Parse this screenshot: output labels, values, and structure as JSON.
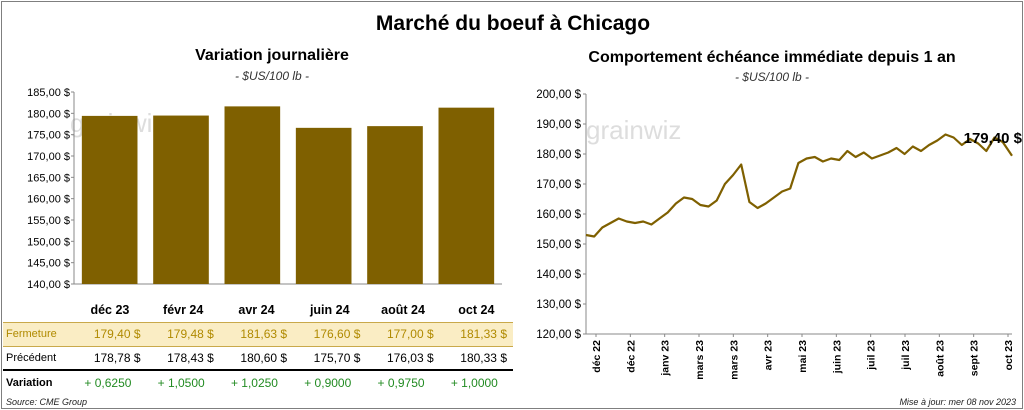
{
  "title": "Marché du boeuf à Chicago",
  "source": "Source: CME Group",
  "update": "Mise à jour: mer 08 nov 2023",
  "watermark": "grainwiz",
  "colors": {
    "bar": "#7f6000",
    "line": "#7f6000",
    "fermeture_bg": "#faedc4",
    "fermeture_text": "#b08a00",
    "variation_text": "#228b22"
  },
  "table": {
    "rows": [
      {
        "label": "Fermeture",
        "values": [
          "179,40  $",
          "179,48  $",
          "181,63  $",
          "176,60  $",
          "177,00  $",
          "181,33  $"
        ]
      },
      {
        "label": "Précédent",
        "values": [
          "178,78  $",
          "178,43  $",
          "180,60  $",
          "175,70  $",
          "176,03  $",
          "180,33  $"
        ]
      },
      {
        "label": "Variation",
        "values": [
          "+ 0,6250",
          "+ 1,0500",
          "+ 1,0250",
          "+ 0,9000",
          "+ 0,9750",
          "+ 1,0000"
        ]
      }
    ]
  },
  "chart_data": [
    {
      "type": "bar",
      "title": "Variation  journalière",
      "subtitle": "- $US/100 lb -",
      "categories": [
        "déc 23",
        "févr 24",
        "avr 24",
        "juin 24",
        "août 24",
        "oct 24"
      ],
      "values": [
        179.4,
        179.48,
        181.63,
        176.6,
        177.0,
        181.33
      ],
      "ylim": [
        140,
        185
      ],
      "yticks": [
        "140,00 $",
        "145,00 $",
        "150,00 $",
        "155,00 $",
        "160,00 $",
        "165,00 $",
        "170,00 $",
        "175,00 $",
        "180,00 $",
        "185,00 $"
      ],
      "grid": false
    },
    {
      "type": "line",
      "title": "Comportement  échéance  immédiate depuis 1 an",
      "subtitle": "- $US/100 lb -",
      "ylim": [
        120,
        200
      ],
      "yticks": [
        "120,00 $",
        "130,00 $",
        "140,00 $",
        "150,00 $",
        "160,00 $",
        "170,00 $",
        "180,00 $",
        "190,00 $",
        "200,00 $"
      ],
      "xticks": [
        "déc 22",
        "déc 22",
        "janv 23",
        "mars 23",
        "mars 23",
        "avr 23",
        "mai 23",
        "juin 23",
        "juil 23",
        "juil 23",
        "août 23",
        "sept 23",
        "oct 23"
      ],
      "last_label": "179,40 $",
      "series": [
        {
          "x": [
            "2022-11-08",
            "2022-11-15",
            "2022-11-22",
            "2022-11-29",
            "2022-12-06",
            "2022-12-13",
            "2022-12-20",
            "2022-12-27",
            "2023-01-03",
            "2023-01-10",
            "2023-01-17",
            "2023-01-24",
            "2023-01-31",
            "2023-02-07",
            "2023-02-14",
            "2023-02-21",
            "2023-02-28",
            "2023-03-07",
            "2023-03-14",
            "2023-03-21",
            "2023-03-28",
            "2023-04-04",
            "2023-04-11",
            "2023-04-18",
            "2023-04-25",
            "2023-05-02",
            "2023-05-09",
            "2023-05-16",
            "2023-05-23",
            "2023-05-30",
            "2023-06-06",
            "2023-06-13",
            "2023-06-20",
            "2023-06-27",
            "2023-07-04",
            "2023-07-11",
            "2023-07-18",
            "2023-07-25",
            "2023-08-01",
            "2023-08-08",
            "2023-08-15",
            "2023-08-22",
            "2023-08-29",
            "2023-09-05",
            "2023-09-12",
            "2023-09-19",
            "2023-09-26",
            "2023-10-03",
            "2023-10-10",
            "2023-10-17",
            "2023-10-24",
            "2023-10-31",
            "2023-11-08"
          ],
          "y": [
            153.0,
            152.5,
            155.5,
            157.0,
            158.5,
            157.5,
            157.0,
            157.5,
            156.5,
            158.5,
            160.5,
            163.5,
            165.5,
            165.0,
            163.0,
            162.5,
            164.5,
            170.0,
            173.0,
            176.5,
            164.0,
            162.0,
            163.5,
            165.5,
            167.5,
            168.5,
            177.0,
            178.5,
            179.0,
            177.5,
            178.5,
            178.0,
            181.0,
            179.0,
            180.5,
            178.5,
            179.5,
            180.5,
            182.0,
            180.0,
            182.5,
            181.0,
            183.0,
            184.5,
            186.5,
            185.5,
            183.0,
            185.0,
            183.5,
            181.0,
            185.5,
            184.0,
            179.4
          ]
        }
      ]
    }
  ]
}
